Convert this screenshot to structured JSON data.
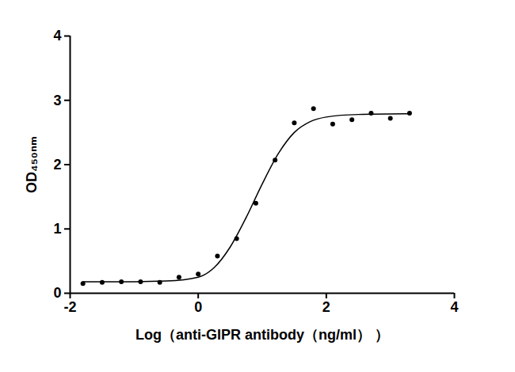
{
  "chart_data": {
    "type": "scatter",
    "x_label": "Log（anti-GIPR antibody（ng/ml） ）",
    "y_label": "OD₄₅₀ₙₘ",
    "xlim": [
      -2,
      4
    ],
    "xticks": [
      -2,
      0,
      2,
      4
    ],
    "ylim": [
      0,
      4
    ],
    "yticks": [
      0,
      1,
      2,
      3,
      4
    ],
    "grid": false,
    "series": [
      {
        "type": "scatter",
        "marker": "circle",
        "color": "#000000",
        "x": [
          -1.8,
          -1.5,
          -1.2,
          -0.9,
          -0.6,
          -0.3,
          0,
          0.3,
          0.6,
          0.9,
          1.2,
          1.5,
          1.8,
          2.1,
          2.4,
          2.7,
          3.0,
          3.3
        ],
        "values": [
          0.15,
          0.17,
          0.18,
          0.18,
          0.17,
          0.25,
          0.3,
          0.58,
          0.85,
          1.4,
          2.07,
          2.65,
          2.87,
          2.63,
          2.7,
          2.8,
          2.72,
          2.8
        ]
      },
      {
        "type": "line",
        "line_style": "solid",
        "color": "#000000",
        "x": [
          -1.8,
          -1,
          -0.5,
          0,
          0.25,
          0.5,
          0.75,
          1,
          1.25,
          1.5,
          1.75,
          2,
          2.5,
          3.3
        ],
        "values": [
          0.18,
          0.18,
          0.19,
          0.25,
          0.4,
          0.72,
          1.18,
          1.7,
          2.17,
          2.5,
          2.67,
          2.74,
          2.78,
          2.79
        ]
      }
    ]
  }
}
